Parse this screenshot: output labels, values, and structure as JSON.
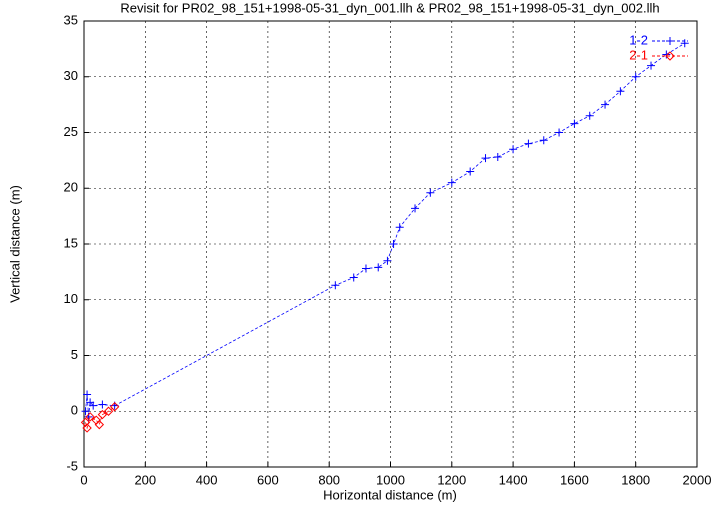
{
  "chart_data": {
    "type": "line",
    "title": "Revisit for PR02_98_151+1998-05-31_dyn_001.llh & PR02_98_151+1998-05-31_dyn_002.llh",
    "x_label": "Horizontal distance (m)",
    "y_label": "Vertical distance (m)",
    "xlim": [
      0,
      2000
    ],
    "xticks": [
      0,
      200,
      400,
      600,
      800,
      1000,
      1200,
      1400,
      1600,
      1800,
      2000
    ],
    "ylim": [
      -5,
      35
    ],
    "yticks": [
      -5,
      0,
      5,
      10,
      15,
      20,
      25,
      30,
      35
    ],
    "grid": true,
    "legend": "top-right",
    "series": [
      {
        "name": "1-2",
        "color": "#0000ff",
        "marker": "plus",
        "x": [
          5,
          10,
          15,
          20,
          30,
          60,
          100,
          820,
          880,
          920,
          960,
          990,
          1010,
          1030,
          1080,
          1130,
          1200,
          1260,
          1310,
          1350,
          1400,
          1450,
          1500,
          1550,
          1600,
          1650,
          1700,
          1750,
          1800,
          1850,
          1900,
          1960
        ],
        "values": [
          0,
          1.5,
          -0.5,
          0.8,
          0.5,
          0.6,
          0.5,
          11.3,
          12,
          12.8,
          12.9,
          13.5,
          15,
          16.5,
          18.2,
          19.6,
          20.5,
          21.5,
          22.7,
          22.8,
          23.5,
          24,
          24.3,
          25,
          25.8,
          26.5,
          27.5,
          28.7,
          30,
          31,
          32,
          33
        ]
      },
      {
        "name": "2-1",
        "color": "#ff0000",
        "marker": "diamond",
        "x": [
          5,
          10,
          20,
          40,
          50,
          60,
          80,
          100
        ],
        "values": [
          -1,
          -1.5,
          -0.5,
          -0.8,
          -1.2,
          -0.3,
          0,
          0.4
        ]
      }
    ]
  }
}
